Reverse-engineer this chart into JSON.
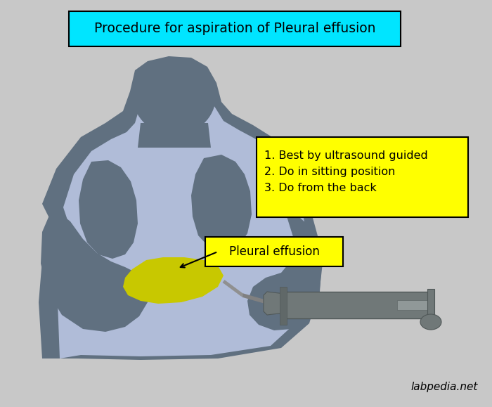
{
  "bg_color": "#c8c8c8",
  "title_text": "Procedure for aspiration of Pleural effusion",
  "title_bg": "#00e5ff",
  "title_border": "#000000",
  "body_dark": "#607080",
  "body_light": "#b0bcd8",
  "effusion_color": "#c8c800",
  "syringe_color": "#707878",
  "info_bg": "#ffff00",
  "info_border": "#000000",
  "info_line1": "1. Best by ultrasound guided",
  "info_line2": "2. Do in sitting position",
  "info_line3": "3. Do from the back",
  "effusion_label": "Pleural effusion",
  "watermark": "labpedia.net"
}
